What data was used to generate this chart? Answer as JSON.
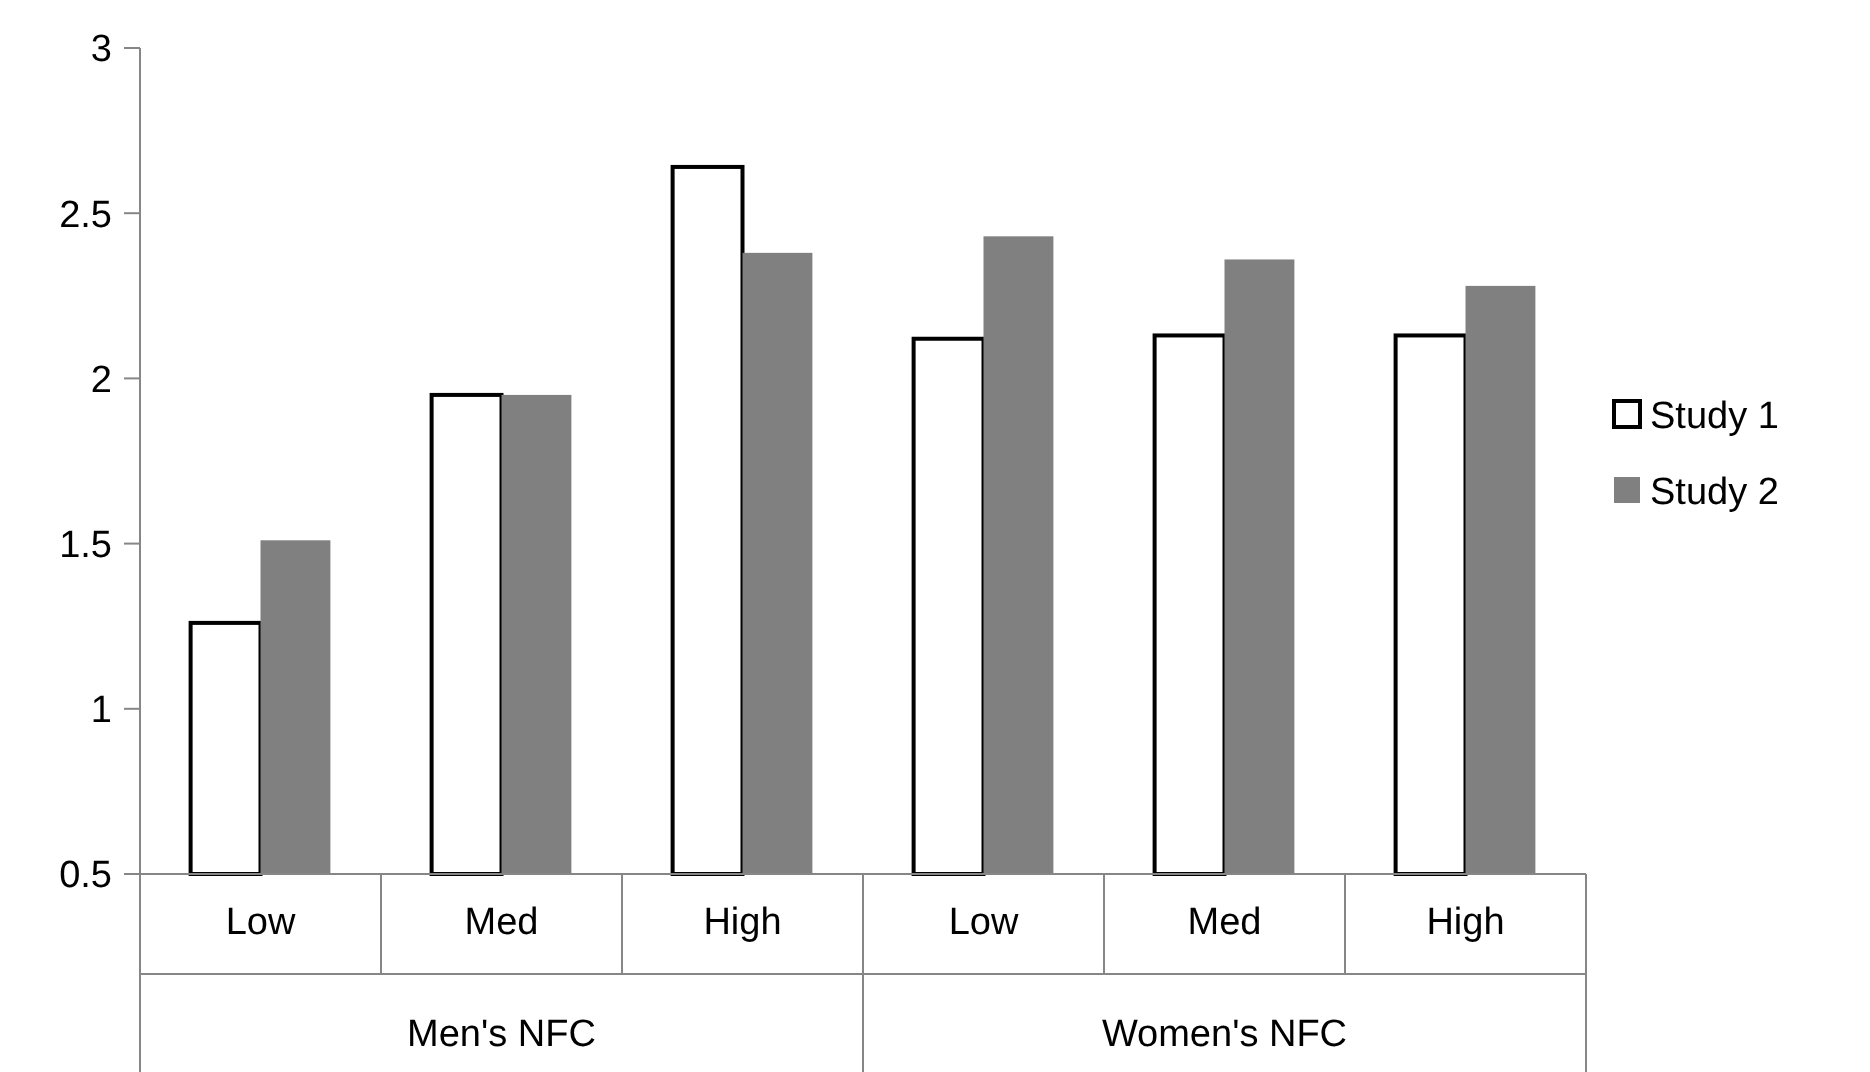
{
  "chart_data": {
    "type": "bar",
    "categories": [
      "Low",
      "Med",
      "High",
      "Low",
      "Med",
      "High"
    ],
    "annotations": [
      "Men's NFC",
      "Women's NFC"
    ],
    "series": [
      {
        "name": "Study 1",
        "color": "#ffffff",
        "values": [
          1.26,
          1.95,
          2.64,
          2.12,
          2.13,
          2.13
        ]
      },
      {
        "name": "Study 2",
        "color": "#808080",
        "values": [
          1.51,
          1.95,
          2.38,
          2.43,
          2.36,
          2.28
        ]
      }
    ],
    "ylim": [
      0.5,
      3
    ],
    "yticks": [
      0.5,
      1,
      1.5,
      2,
      2.5,
      3
    ],
    "grid": false,
    "legend": "right"
  }
}
